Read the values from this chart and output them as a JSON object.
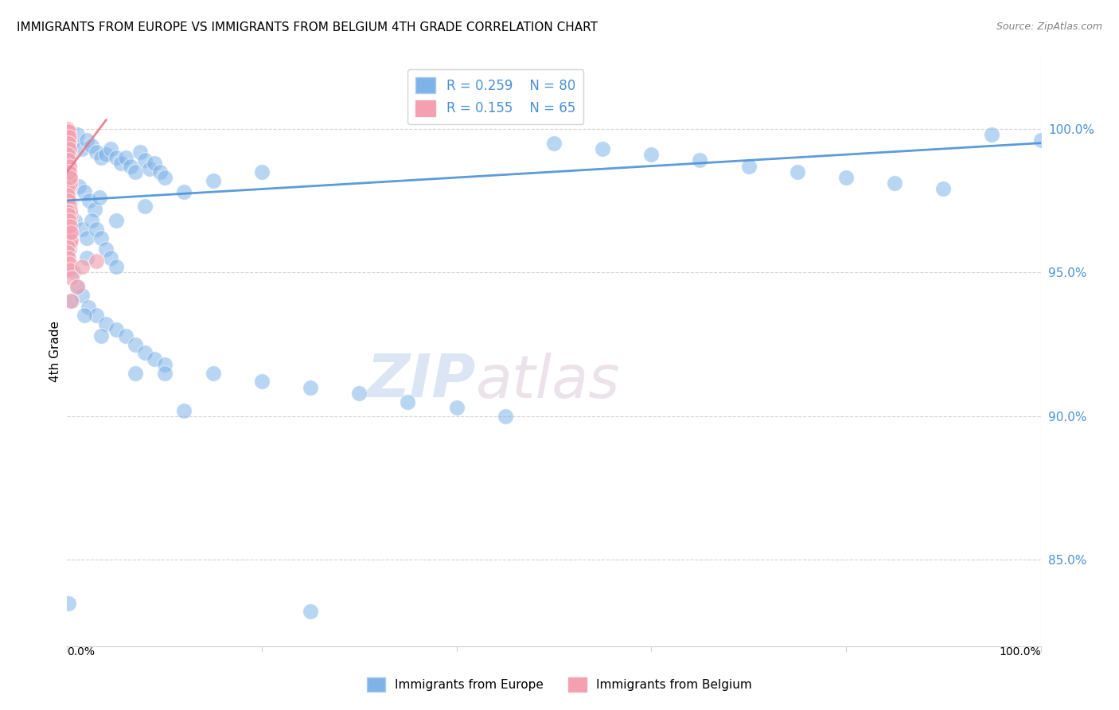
{
  "title": "IMMIGRANTS FROM EUROPE VS IMMIGRANTS FROM BELGIUM 4TH GRADE CORRELATION CHART",
  "source": "Source: ZipAtlas.com",
  "ylabel": "4th Grade",
  "xlim": [
    0.0,
    100.0
  ],
  "ylim": [
    82.0,
    102.5
  ],
  "blue_R": 0.259,
  "blue_N": 80,
  "pink_R": 0.155,
  "pink_N": 65,
  "blue_color": "#7EB3E8",
  "pink_color": "#F4A0B0",
  "blue_line_color": "#4A90D9",
  "pink_line_color": "#E87A8A",
  "legend_label_blue": "Immigrants from Europe",
  "legend_label_pink": "Immigrants from Belgium",
  "watermark_zip": "ZIP",
  "watermark_atlas": "atlas",
  "y_ticks": [
    85.0,
    90.0,
    95.0,
    100.0
  ],
  "y_tick_labels": [
    "85.0%",
    "90.0%",
    "95.0%",
    "100.0%"
  ],
  "blue_points": [
    [
      0.5,
      99.5
    ],
    [
      1.0,
      99.8
    ],
    [
      1.5,
      99.3
    ],
    [
      2.0,
      99.6
    ],
    [
      2.5,
      99.4
    ],
    [
      3.0,
      99.2
    ],
    [
      3.5,
      99.0
    ],
    [
      4.0,
      99.1
    ],
    [
      4.5,
      99.3
    ],
    [
      5.0,
      99.0
    ],
    [
      5.5,
      98.8
    ],
    [
      6.0,
      99.0
    ],
    [
      6.5,
      98.7
    ],
    [
      7.0,
      98.5
    ],
    [
      7.5,
      99.2
    ],
    [
      8.0,
      98.9
    ],
    [
      8.5,
      98.6
    ],
    [
      9.0,
      98.8
    ],
    [
      9.5,
      98.5
    ],
    [
      10.0,
      98.3
    ],
    [
      1.2,
      98.0
    ],
    [
      1.8,
      97.8
    ],
    [
      2.3,
      97.5
    ],
    [
      2.8,
      97.2
    ],
    [
      3.3,
      97.6
    ],
    [
      0.3,
      97.4
    ],
    [
      0.8,
      96.8
    ],
    [
      1.5,
      96.5
    ],
    [
      2.0,
      96.2
    ],
    [
      2.5,
      96.8
    ],
    [
      3.0,
      96.5
    ],
    [
      3.5,
      96.2
    ],
    [
      4.0,
      95.8
    ],
    [
      4.5,
      95.5
    ],
    [
      5.0,
      95.2
    ],
    [
      0.2,
      95.8
    ],
    [
      0.6,
      95.0
    ],
    [
      1.0,
      94.5
    ],
    [
      1.5,
      94.2
    ],
    [
      2.2,
      93.8
    ],
    [
      3.0,
      93.5
    ],
    [
      4.0,
      93.2
    ],
    [
      5.0,
      93.0
    ],
    [
      6.0,
      92.8
    ],
    [
      7.0,
      92.5
    ],
    [
      8.0,
      92.2
    ],
    [
      9.0,
      92.0
    ],
    [
      10.0,
      91.8
    ],
    [
      15.0,
      91.5
    ],
    [
      20.0,
      91.2
    ],
    [
      25.0,
      91.0
    ],
    [
      30.0,
      90.8
    ],
    [
      35.0,
      90.5
    ],
    [
      40.0,
      90.3
    ],
    [
      45.0,
      90.0
    ],
    [
      50.0,
      99.5
    ],
    [
      55.0,
      99.3
    ],
    [
      60.0,
      99.1
    ],
    [
      65.0,
      98.9
    ],
    [
      70.0,
      98.7
    ],
    [
      75.0,
      98.5
    ],
    [
      80.0,
      98.3
    ],
    [
      85.0,
      98.1
    ],
    [
      90.0,
      97.9
    ],
    [
      95.0,
      99.8
    ],
    [
      100.0,
      99.6
    ],
    [
      0.1,
      83.5
    ],
    [
      25.0,
      83.2
    ],
    [
      10.0,
      91.5
    ],
    [
      20.0,
      98.5
    ],
    [
      15.0,
      98.2
    ],
    [
      12.0,
      97.8
    ],
    [
      8.0,
      97.3
    ],
    [
      5.0,
      96.8
    ],
    [
      2.0,
      95.5
    ],
    [
      0.5,
      94.0
    ],
    [
      1.8,
      93.5
    ],
    [
      3.5,
      92.8
    ],
    [
      7.0,
      91.5
    ],
    [
      12.0,
      90.2
    ]
  ],
  "pink_points": [
    [
      0.1,
      99.8
    ],
    [
      0.2,
      99.6
    ],
    [
      0.15,
      99.4
    ],
    [
      0.05,
      99.2
    ],
    [
      0.25,
      99.0
    ],
    [
      0.08,
      98.8
    ],
    [
      0.12,
      98.6
    ],
    [
      0.18,
      98.4
    ],
    [
      0.22,
      98.2
    ],
    [
      0.3,
      98.0
    ],
    [
      0.06,
      97.8
    ],
    [
      0.14,
      97.6
    ],
    [
      0.2,
      97.4
    ],
    [
      0.28,
      97.2
    ],
    [
      0.35,
      97.0
    ],
    [
      0.04,
      96.8
    ],
    [
      0.1,
      96.6
    ],
    [
      0.16,
      96.4
    ],
    [
      0.24,
      96.2
    ],
    [
      0.32,
      96.0
    ],
    [
      0.05,
      99.9
    ],
    [
      0.09,
      99.7
    ],
    [
      0.13,
      99.5
    ],
    [
      0.17,
      99.3
    ],
    [
      0.21,
      99.1
    ],
    [
      0.07,
      98.9
    ],
    [
      0.11,
      98.7
    ],
    [
      0.19,
      98.5
    ],
    [
      0.26,
      98.3
    ],
    [
      0.33,
      98.1
    ],
    [
      0.03,
      97.9
    ],
    [
      0.08,
      97.7
    ],
    [
      0.15,
      97.5
    ],
    [
      0.23,
      97.3
    ],
    [
      0.31,
      97.1
    ],
    [
      0.06,
      96.9
    ],
    [
      0.12,
      96.7
    ],
    [
      0.18,
      96.5
    ],
    [
      0.25,
      96.3
    ],
    [
      0.34,
      96.1
    ],
    [
      0.02,
      95.9
    ],
    [
      0.09,
      95.7
    ],
    [
      0.16,
      95.5
    ],
    [
      0.22,
      95.3
    ],
    [
      0.3,
      95.1
    ],
    [
      1.5,
      95.2
    ],
    [
      3.0,
      95.4
    ],
    [
      0.5,
      94.8
    ],
    [
      1.0,
      94.5
    ],
    [
      0.4,
      94.0
    ],
    [
      0.05,
      100.0
    ],
    [
      0.1,
      99.9
    ],
    [
      0.2,
      99.7
    ],
    [
      0.15,
      99.5
    ],
    [
      0.25,
      99.3
    ],
    [
      0.08,
      99.1
    ],
    [
      0.12,
      98.9
    ],
    [
      0.22,
      98.7
    ],
    [
      0.18,
      98.5
    ],
    [
      0.28,
      98.3
    ],
    [
      0.06,
      97.1
    ],
    [
      0.14,
      97.0
    ],
    [
      0.24,
      96.8
    ],
    [
      0.32,
      96.6
    ],
    [
      0.4,
      96.4
    ]
  ],
  "blue_line_x": [
    0.0,
    100.0
  ],
  "blue_line_y": [
    97.5,
    99.5
  ],
  "pink_line_x": [
    0.0,
    4.0
  ],
  "pink_line_y": [
    98.5,
    100.3
  ]
}
